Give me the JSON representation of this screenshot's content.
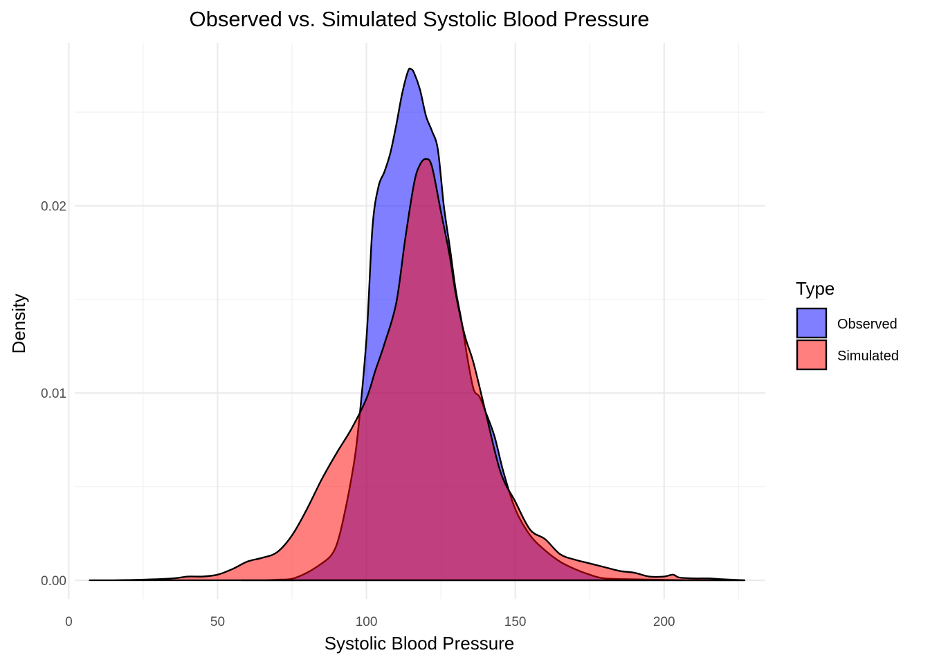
{
  "chart_data": {
    "type": "area",
    "title": "Observed vs. Simulated Systolic Blood Pressure",
    "xlabel": "Systolic Blood Pressure",
    "ylabel": "Density",
    "xlim": [
      2,
      234
    ],
    "ylim": [
      -0.001,
      0.0287
    ],
    "x_ticks": [
      0,
      50,
      100,
      150,
      200
    ],
    "x_minor_ticks": [
      25,
      75,
      125,
      175,
      225
    ],
    "y_ticks": [
      0.0,
      0.01,
      0.02
    ],
    "y_tick_labels": [
      "0.00",
      "0.01",
      "0.02"
    ],
    "y_minor_ticks": [
      0.005,
      0.015,
      0.025
    ],
    "grid": true,
    "legend": {
      "title": "Type",
      "placement": "right",
      "entries": [
        {
          "name": "Observed",
          "color": "#0000ff",
          "opacity": 0.5
        },
        {
          "name": "Simulated",
          "color": "#ff0000",
          "opacity": 0.5
        }
      ]
    },
    "series": [
      {
        "name": "Observed",
        "color": "#0000ff",
        "x": [
          58,
          65,
          70,
          75,
          80,
          85,
          88,
          90,
          92,
          95,
          97,
          100,
          102,
          104,
          106,
          108,
          110,
          112,
          114,
          115,
          116,
          118,
          120,
          122,
          124,
          126,
          128,
          130,
          132,
          134,
          136,
          138,
          140,
          143,
          146,
          150,
          155,
          160,
          165,
          170,
          175,
          180,
          190,
          200,
          210,
          220,
          227
        ],
        "y": [
          0.0,
          0.0,
          3e-05,
          8e-05,
          0.0004,
          0.0009,
          0.0013,
          0.0019,
          0.0031,
          0.0055,
          0.0077,
          0.0129,
          0.0188,
          0.021,
          0.0218,
          0.0228,
          0.0243,
          0.026,
          0.0272,
          0.0273,
          0.0271,
          0.0262,
          0.0248,
          0.024,
          0.023,
          0.02,
          0.0178,
          0.0155,
          0.0138,
          0.0118,
          0.0102,
          0.0098,
          0.009,
          0.0077,
          0.0058,
          0.0038,
          0.0024,
          0.0016,
          0.001,
          0.0006,
          0.0003,
          0.0001,
          5e-05,
          2e-05,
          0.0,
          0.0,
          0.0
        ]
      },
      {
        "name": "Simulated",
        "color": "#ff0000",
        "x": [
          7,
          15,
          25,
          35,
          40,
          45,
          50,
          55,
          60,
          65,
          70,
          75,
          80,
          85,
          90,
          95,
          100,
          103,
          106,
          110,
          113,
          116,
          118,
          120,
          122,
          125,
          128,
          130,
          133,
          136,
          140,
          145,
          150,
          155,
          160,
          165,
          170,
          175,
          180,
          185,
          190,
          195,
          200,
          203,
          205,
          210,
          215,
          220,
          227
        ],
        "y": [
          0.0,
          0.0,
          3e-05,
          0.0001,
          0.0002,
          0.0002,
          0.0003,
          0.0006,
          0.001,
          0.0012,
          0.0015,
          0.0024,
          0.0038,
          0.0054,
          0.0068,
          0.0081,
          0.0097,
          0.0112,
          0.0126,
          0.0148,
          0.0182,
          0.0212,
          0.0222,
          0.0225,
          0.0221,
          0.0197,
          0.0173,
          0.0153,
          0.0131,
          0.0116,
          0.009,
          0.0058,
          0.0042,
          0.0027,
          0.0022,
          0.0014,
          0.0011,
          0.0009,
          0.0007,
          0.0005,
          0.0004,
          0.0002,
          0.0002,
          0.0003,
          0.00015,
          0.0001,
          0.0001,
          5e-05,
          0.0
        ]
      }
    ]
  }
}
